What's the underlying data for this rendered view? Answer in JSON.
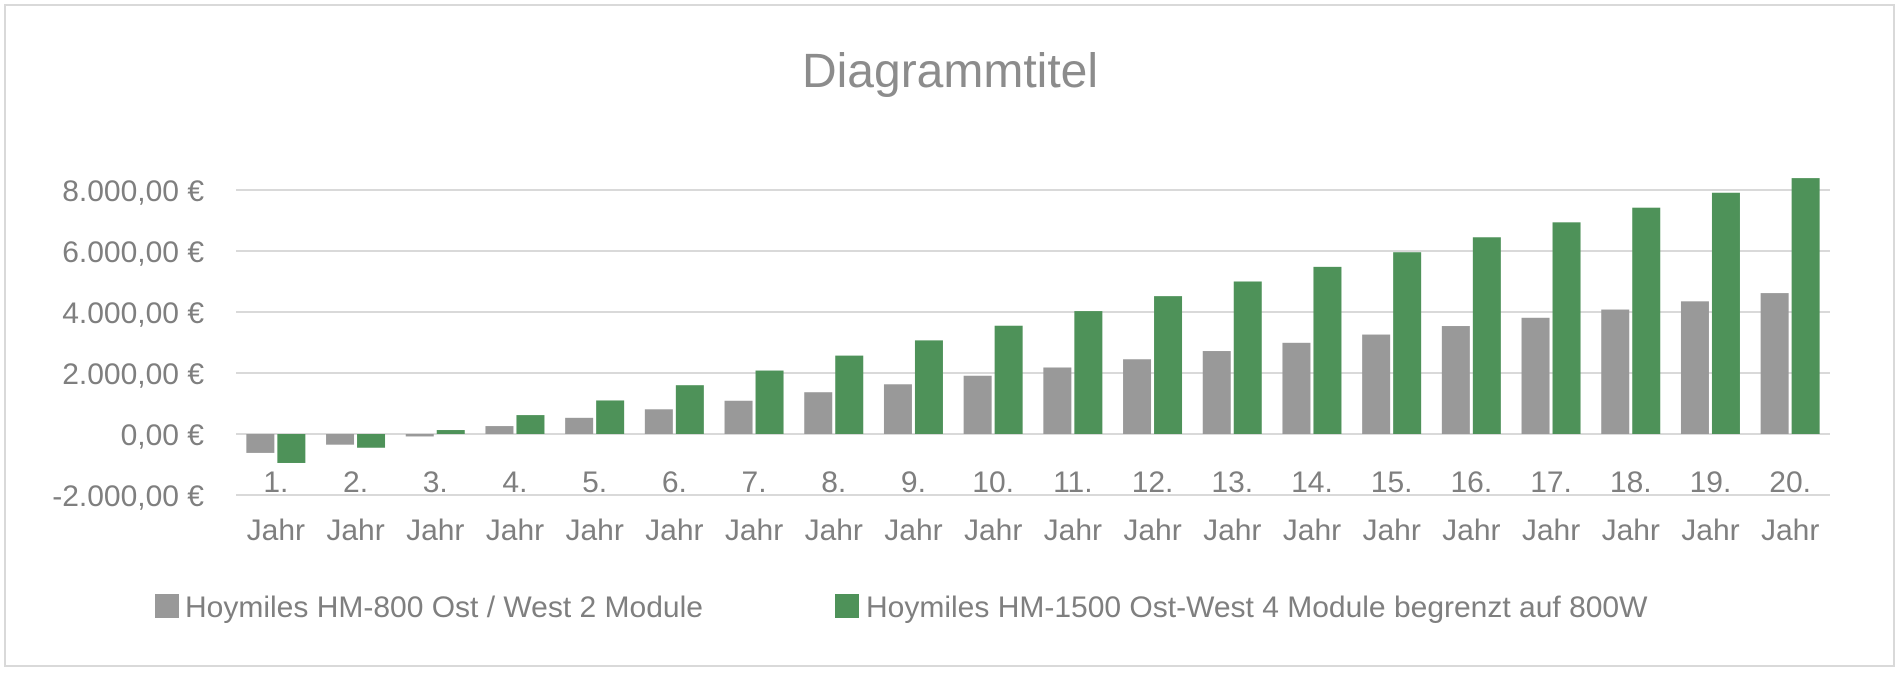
{
  "chart_data": {
    "type": "bar",
    "title": "Diagrammtitel",
    "categories": [
      [
        "1.",
        "Jahr"
      ],
      [
        "2.",
        "Jahr"
      ],
      [
        "3.",
        "Jahr"
      ],
      [
        "4.",
        "Jahr"
      ],
      [
        "5.",
        "Jahr"
      ],
      [
        "6.",
        "Jahr"
      ],
      [
        "7.",
        "Jahr"
      ],
      [
        "8.",
        "Jahr"
      ],
      [
        "9.",
        "Jahr"
      ],
      [
        "10.",
        "Jahr"
      ],
      [
        "11.",
        "Jahr"
      ],
      [
        "12.",
        "Jahr"
      ],
      [
        "13.",
        "Jahr"
      ],
      [
        "14.",
        "Jahr"
      ],
      [
        "15.",
        "Jahr"
      ],
      [
        "16.",
        "Jahr"
      ],
      [
        "17.",
        "Jahr"
      ],
      [
        "18.",
        "Jahr"
      ],
      [
        "19.",
        "Jahr"
      ],
      [
        "20.",
        "Jahr"
      ]
    ],
    "y_ticks": [
      {
        "value": 8000,
        "label": "8.000,00 €"
      },
      {
        "value": 6000,
        "label": "6.000,00 €"
      },
      {
        "value": 4000,
        "label": "4.000,00 €"
      },
      {
        "value": 2000,
        "label": "2.000,00 €"
      },
      {
        "value": 0,
        "label": "0,00 €"
      },
      {
        "value": -2000,
        "label": "-2.000,00 €"
      }
    ],
    "ylim": [
      -2000,
      8000
    ],
    "grid": true,
    "legend_position": "bottom",
    "series": [
      {
        "name": "Hoymiles HM-800 Ost / West 2 Module",
        "color": "#999999",
        "values": [
          -620,
          -350,
          -80,
          260,
          530,
          810,
          1090,
          1370,
          1630,
          1910,
          2180,
          2450,
          2720,
          2990,
          3260,
          3540,
          3810,
          4080,
          4350,
          4620
        ]
      },
      {
        "name": "Hoymiles HM-1500 Ost-West 4 Module begrenzt auf 800W",
        "color": "#4e9259",
        "values": [
          -950,
          -450,
          130,
          620,
          1100,
          1600,
          2080,
          2570,
          3070,
          3550,
          4030,
          4520,
          5000,
          5480,
          5960,
          6450,
          6940,
          7420,
          7910,
          8390
        ]
      }
    ]
  }
}
